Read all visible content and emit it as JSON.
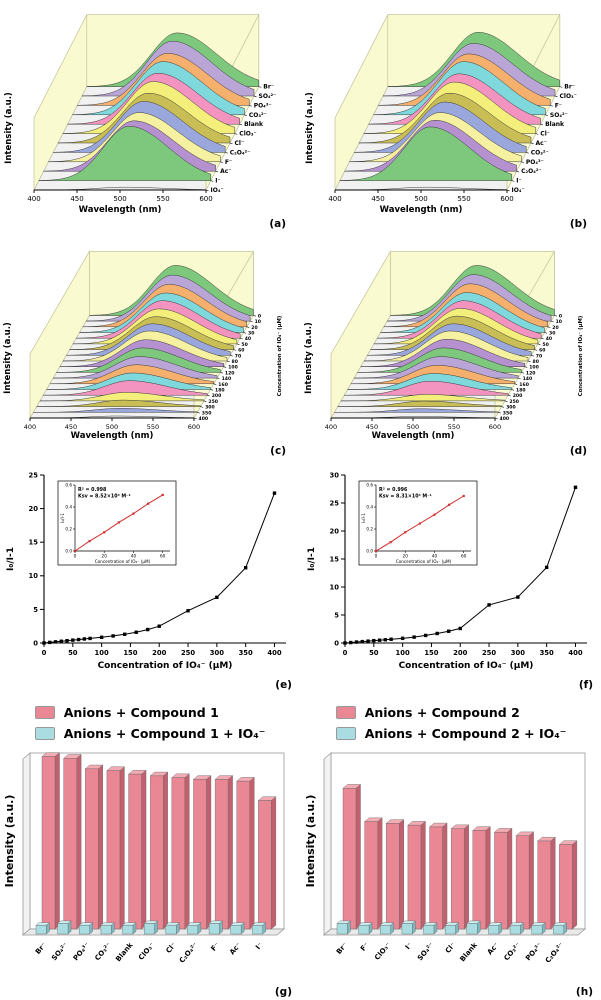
{
  "background": "#ffffff",
  "chart_data": [
    {
      "id": "a",
      "panel_label": "(a)",
      "type": "area",
      "subtype": "3d-waterfall",
      "xlabel": "Wavelength (nm)",
      "ylabel": "Intensity (a.u.)",
      "zlabel": "",
      "xlim": [
        400,
        600
      ],
      "xticks": [
        400,
        450,
        500,
        550,
        600
      ],
      "peak_nm": 505,
      "series_order": "back-to-front",
      "series_labels": [
        "Br⁻",
        "SO₄²⁻",
        "PO₄³⁻",
        "CO₃²⁻",
        "Blank",
        "ClO₃⁻",
        "Cl⁻",
        "C₂O₄²⁻",
        "F⁻",
        "Ac⁻",
        "I⁻",
        "IO₄⁻"
      ],
      "relative_peak_intensities": [
        0.96,
        0.98,
        0.93,
        0.95,
        0.91,
        0.93,
        0.89,
        0.91,
        0.88,
        0.9,
        0.97,
        0.05
      ],
      "colors": [
        "#7dc87d",
        "#b9a6d6",
        "#f5b06e",
        "#7fd9dc",
        "#f394c0",
        "#f3ef7a",
        "#c9bd55",
        "#9aa7dd",
        "#f6f1a0",
        "#b591cf",
        "#7dc87d",
        "#ebebeb"
      ],
      "wall_color": "#fafad0",
      "floor_color": "#f1f1f1"
    },
    {
      "id": "b",
      "panel_label": "(b)",
      "type": "area",
      "subtype": "3d-waterfall",
      "xlabel": "Wavelength (nm)",
      "ylabel": "Intensity (a.u.)",
      "zlabel": "",
      "xlim": [
        400,
        600
      ],
      "xticks": [
        400,
        450,
        500,
        550,
        600
      ],
      "peak_nm": 505,
      "series_order": "back-to-front",
      "series_labels": [
        "Br⁻",
        "ClO₃⁻",
        "F⁻",
        "SO₄²⁻",
        "Blank",
        "Cl⁻",
        "Ac⁻",
        "CO₃²⁻",
        "PO₄³⁻",
        "C₂O₄²⁻",
        "I⁻",
        "IO₄⁻"
      ],
      "relative_peak_intensities": [
        0.97,
        0.94,
        0.92,
        0.95,
        0.9,
        0.92,
        0.89,
        0.9,
        0.88,
        0.91,
        0.96,
        0.05
      ],
      "colors": [
        "#7dc87d",
        "#b9a6d6",
        "#f5b06e",
        "#7fd9dc",
        "#f394c0",
        "#f3ef7a",
        "#c9bd55",
        "#9aa7dd",
        "#f6f1a0",
        "#b591cf",
        "#7dc87d",
        "#ebebeb"
      ],
      "wall_color": "#fafad0",
      "floor_color": "#f1f1f1"
    },
    {
      "id": "c",
      "panel_label": "(c)",
      "type": "area",
      "subtype": "3d-waterfall",
      "xlabel": "Wavelength (nm)",
      "ylabel": "Intensity (a.u.)",
      "zlabel": "Concentration of IO₄⁻ (µM)",
      "xlim": [
        400,
        600
      ],
      "xticks": [
        400,
        450,
        500,
        550,
        600
      ],
      "peak_nm": 505,
      "series_order": "back-to-front",
      "series_labels": [
        "0",
        "10",
        "20",
        "30",
        "40",
        "50",
        "60",
        "70",
        "80",
        "100",
        "120",
        "140",
        "160",
        "180",
        "200",
        "250",
        "300",
        "350",
        "400"
      ],
      "relative_peak_intensities": [
        1.0,
        0.92,
        0.85,
        0.79,
        0.75,
        0.7,
        0.66,
        0.63,
        0.6,
        0.54,
        0.49,
        0.43,
        0.38,
        0.33,
        0.29,
        0.17,
        0.13,
        0.08,
        0.04
      ],
      "colors": [
        "#7dc87d",
        "#b9a6d6",
        "#f5b06e",
        "#7fd9dc",
        "#f394c0",
        "#f3ef7a",
        "#c9bd55",
        "#9aa7dd",
        "#f6f1a0",
        "#b591cf",
        "#7dc87d",
        "#b9a6d6",
        "#f5b06e",
        "#7fd9dc",
        "#f394c0",
        "#f3ef7a",
        "#c9bd55",
        "#9aa7dd",
        "#e8e8e8"
      ],
      "wall_color": "#fafad0",
      "floor_color": "#f1f1f1"
    },
    {
      "id": "d",
      "panel_label": "(d)",
      "type": "area",
      "subtype": "3d-waterfall",
      "xlabel": "Wavelength (nm)",
      "ylabel": "Intensity (a.u.)",
      "zlabel": "Concentration of IO₄⁻ (µM)",
      "xlim": [
        400,
        600
      ],
      "xticks": [
        400,
        450,
        500,
        550,
        600
      ],
      "peak_nm": 505,
      "series_order": "back-to-front",
      "series_labels": [
        "0",
        "10",
        "20",
        "30",
        "40",
        "50",
        "60",
        "70",
        "80",
        "100",
        "120",
        "140",
        "160",
        "180",
        "200",
        "250",
        "300",
        "350",
        "400"
      ],
      "relative_peak_intensities": [
        1.0,
        0.93,
        0.86,
        0.8,
        0.75,
        0.71,
        0.67,
        0.63,
        0.6,
        0.55,
        0.49,
        0.43,
        0.37,
        0.32,
        0.28,
        0.13,
        0.11,
        0.07,
        0.03
      ],
      "colors": [
        "#7dc87d",
        "#b9a6d6",
        "#f5b06e",
        "#7fd9dc",
        "#f394c0",
        "#f3ef7a",
        "#c9bd55",
        "#9aa7dd",
        "#f6f1a0",
        "#b591cf",
        "#7dc87d",
        "#b9a6d6",
        "#f5b06e",
        "#7fd9dc",
        "#f394c0",
        "#f3ef7a",
        "#c9bd55",
        "#9aa7dd",
        "#e8e8e8"
      ],
      "wall_color": "#fafad0",
      "floor_color": "#f1f1f1"
    },
    {
      "id": "e",
      "panel_label": "(e)",
      "type": "line",
      "marker": "square",
      "xlabel": "Concentration of IO₄⁻ (µM)",
      "ylabel": "I₀/I-1",
      "xlim": [
        0,
        420
      ],
      "ylim": [
        0,
        25
      ],
      "xticks": [
        0,
        50,
        100,
        150,
        200,
        250,
        300,
        350,
        400
      ],
      "yticks": [
        0,
        5,
        10,
        15,
        20,
        25
      ],
      "x": [
        0,
        10,
        20,
        30,
        40,
        50,
        60,
        70,
        80,
        100,
        120,
        140,
        160,
        180,
        200,
        250,
        300,
        350,
        400
      ],
      "y": [
        0,
        0.09,
        0.17,
        0.26,
        0.34,
        0.43,
        0.51,
        0.6,
        0.68,
        0.85,
        1.05,
        1.3,
        1.6,
        2.0,
        2.5,
        4.8,
        6.8,
        11.2,
        22.3
      ],
      "line_color": "#000000",
      "inset": {
        "r2_text": "R² = 0.998",
        "ksv_text": "Ksv = 8.52×10³ M⁻¹",
        "xlabel": "Concentration of IO₄⁻ (µM)",
        "ylabel": "I₀/I-1",
        "xlim": [
          0,
          65
        ],
        "ylim": [
          0,
          0.6
        ],
        "xticks": [
          0,
          20,
          40,
          60
        ],
        "yticks": [
          0,
          0.2,
          0.4,
          0.6
        ],
        "x": [
          0,
          10,
          20,
          30,
          40,
          50,
          60
        ],
        "y": [
          0,
          0.09,
          0.17,
          0.26,
          0.34,
          0.43,
          0.51
        ],
        "line_color": "#d03030"
      }
    },
    {
      "id": "f",
      "panel_label": "(f)",
      "type": "line",
      "marker": "square",
      "xlabel": "Concentration of IO₄⁻ (µM)",
      "ylabel": "I₀/I-1",
      "xlim": [
        0,
        420
      ],
      "ylim": [
        0,
        30
      ],
      "xticks": [
        0,
        50,
        100,
        150,
        200,
        250,
        300,
        350,
        400
      ],
      "yticks": [
        0,
        5,
        10,
        15,
        20,
        25,
        30
      ],
      "x": [
        0,
        10,
        20,
        30,
        40,
        50,
        60,
        70,
        80,
        100,
        120,
        140,
        160,
        180,
        200,
        250,
        300,
        350,
        400
      ],
      "y": [
        0,
        0.08,
        0.17,
        0.25,
        0.33,
        0.42,
        0.5,
        0.58,
        0.67,
        0.83,
        1.05,
        1.35,
        1.7,
        2.1,
        2.6,
        6.8,
        8.2,
        13.5,
        27.8
      ],
      "line_color": "#000000",
      "inset": {
        "r2_text": "R² = 0.996",
        "ksv_text": "Ksv = 8.31×10³ M⁻¹",
        "xlabel": "Concentration of IO₄⁻ (µM)",
        "ylabel": "I₀/I-1",
        "xlim": [
          0,
          65
        ],
        "ylim": [
          0,
          0.6
        ],
        "xticks": [
          0,
          20,
          40,
          60
        ],
        "yticks": [
          0,
          0.2,
          0.4,
          0.6
        ],
        "x": [
          0,
          10,
          20,
          30,
          40,
          50,
          60
        ],
        "y": [
          0,
          0.08,
          0.17,
          0.25,
          0.33,
          0.42,
          0.5
        ],
        "line_color": "#d03030"
      }
    },
    {
      "id": "g",
      "panel_label": "(g)",
      "type": "bar",
      "ylabel": "Intensity (a.u.)",
      "legend": [
        "Anions + Compound 1",
        "Anions + Compound 1 + IO₄⁻"
      ],
      "legend_colors": [
        "#e98794",
        "#aadde2"
      ],
      "categories": [
        "Br⁻",
        "SO₄²⁻",
        "PO₄³⁻",
        "CO₃²⁻",
        "Blank",
        "ClO₃⁻",
        "Cl⁻",
        "C₂O₄²⁻",
        "F⁻",
        "Ac⁻",
        "I⁻"
      ],
      "series": [
        {
          "name": "Anions + Compound 1",
          "values": [
            0.98,
            0.97,
            0.91,
            0.9,
            0.88,
            0.87,
            0.86,
            0.85,
            0.85,
            0.84,
            0.73
          ]
        },
        {
          "name": "Anions + Compound 1 + IO₄⁻",
          "values": [
            0.05,
            0.06,
            0.05,
            0.05,
            0.05,
            0.06,
            0.05,
            0.05,
            0.06,
            0.05,
            0.05
          ]
        }
      ],
      "bar_colors": {
        "front": "#e98794",
        "side": "#c2606e",
        "top": "#f3abb4"
      },
      "bar_colors2": {
        "front": "#aadde2",
        "side": "#7cb8c0",
        "top": "#cdeef1"
      }
    },
    {
      "id": "h",
      "panel_label": "(h)",
      "type": "bar",
      "ylabel": "Intensity (a.u.)",
      "legend": [
        "Anions + Compound 2",
        "Anions + Compound 2 + IO₄⁻"
      ],
      "legend_colors": [
        "#e98794",
        "#aadde2"
      ],
      "categories": [
        "Br⁻",
        "F⁻",
        "ClO₃⁻",
        "I⁻",
        "SO₄²⁻",
        "Cl⁻",
        "Blank",
        "Ac⁻",
        "CO₃²⁻",
        "PO₄³⁻",
        "C₂O₄²⁻"
      ],
      "series": [
        {
          "name": "Anions + Compound 2",
          "values": [
            0.8,
            0.61,
            0.6,
            0.59,
            0.58,
            0.57,
            0.56,
            0.55,
            0.53,
            0.5,
            0.48
          ]
        },
        {
          "name": "Anions + Compound 2 + IO₄⁻",
          "values": [
            0.06,
            0.05,
            0.05,
            0.06,
            0.05,
            0.05,
            0.06,
            0.05,
            0.05,
            0.05,
            0.05
          ]
        }
      ],
      "bar_colors": {
        "front": "#e98794",
        "side": "#c2606e",
        "top": "#f3abb4"
      },
      "bar_colors2": {
        "front": "#aadde2",
        "side": "#7cb8c0",
        "top": "#cdeef1"
      }
    }
  ]
}
